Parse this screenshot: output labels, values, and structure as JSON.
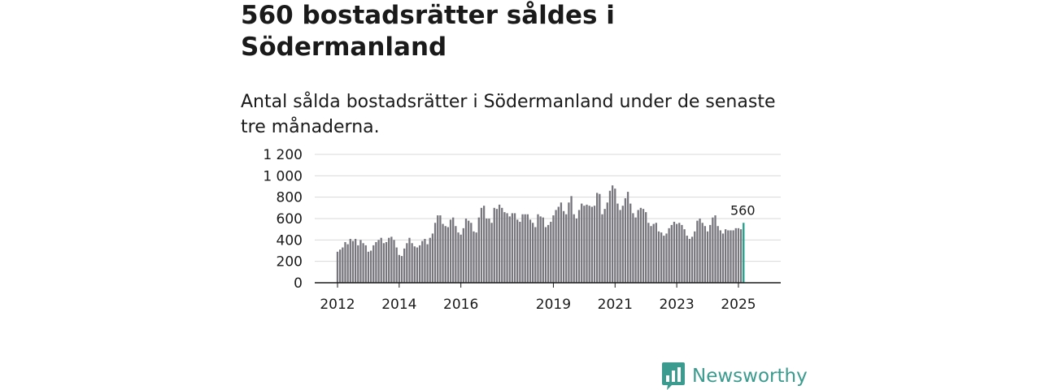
{
  "title": "560 bostadsrätter såldes i Södermanland",
  "subtitle": "Antal sålda bostadsrätter i Södermanland under de senaste tre månaderna.",
  "brand": {
    "name": "Newsworthy"
  },
  "colors": {
    "bar": "#77767d",
    "highlight": "#1f9e8a",
    "grid": "#d9d9d9",
    "axis": "#1a1a1a",
    "brand": "#3a9b8e"
  },
  "chart_data": {
    "type": "bar",
    "title": "560 bostadsrätter såldes i Södermanland",
    "xlabel": "",
    "ylabel": "",
    "ylim": [
      0,
      1200
    ],
    "y_ticks": [
      0,
      200,
      400,
      600,
      800,
      1000,
      1200
    ],
    "y_tick_labels": [
      "0",
      "200",
      "400",
      "600",
      "800",
      "1 000",
      "1 200"
    ],
    "x_ticks": [
      {
        "label": "2012",
        "index": 0
      },
      {
        "label": "2014",
        "index": 24
      },
      {
        "label": "2016",
        "index": 48
      },
      {
        "label": "2019",
        "index": 84
      },
      {
        "label": "2021",
        "index": 108
      },
      {
        "label": "2023",
        "index": 132
      },
      {
        "label": "2025",
        "index": 156
      }
    ],
    "start": "2012-01",
    "values": [
      290,
      310,
      330,
      380,
      360,
      410,
      390,
      410,
      350,
      400,
      370,
      350,
      290,
      300,
      350,
      380,
      400,
      420,
      370,
      380,
      420,
      430,
      400,
      330,
      260,
      250,
      320,
      370,
      420,
      370,
      340,
      330,
      350,
      390,
      410,
      360,
      420,
      460,
      560,
      630,
      630,
      550,
      530,
      520,
      590,
      610,
      530,
      470,
      450,
      510,
      600,
      580,
      560,
      480,
      470,
      610,
      700,
      720,
      600,
      600,
      560,
      700,
      690,
      730,
      700,
      660,
      650,
      620,
      650,
      650,
      590,
      570,
      640,
      640,
      640,
      590,
      560,
      520,
      640,
      620,
      610,
      520,
      540,
      570,
      630,
      680,
      710,
      750,
      670,
      640,
      750,
      810,
      640,
      600,
      680,
      740,
      720,
      730,
      720,
      710,
      720,
      840,
      830,
      640,
      690,
      750,
      860,
      910,
      880,
      740,
      680,
      720,
      790,
      850,
      740,
      650,
      610,
      680,
      700,
      690,
      660,
      560,
      530,
      550,
      560,
      480,
      470,
      440,
      460,
      510,
      540,
      570,
      550,
      560,
      540,
      500,
      440,
      410,
      430,
      480,
      580,
      600,
      560,
      530,
      480,
      540,
      610,
      630,
      530,
      490,
      460,
      500,
      490,
      490,
      490,
      510,
      510,
      500,
      560
    ],
    "highlight_label": "560"
  }
}
